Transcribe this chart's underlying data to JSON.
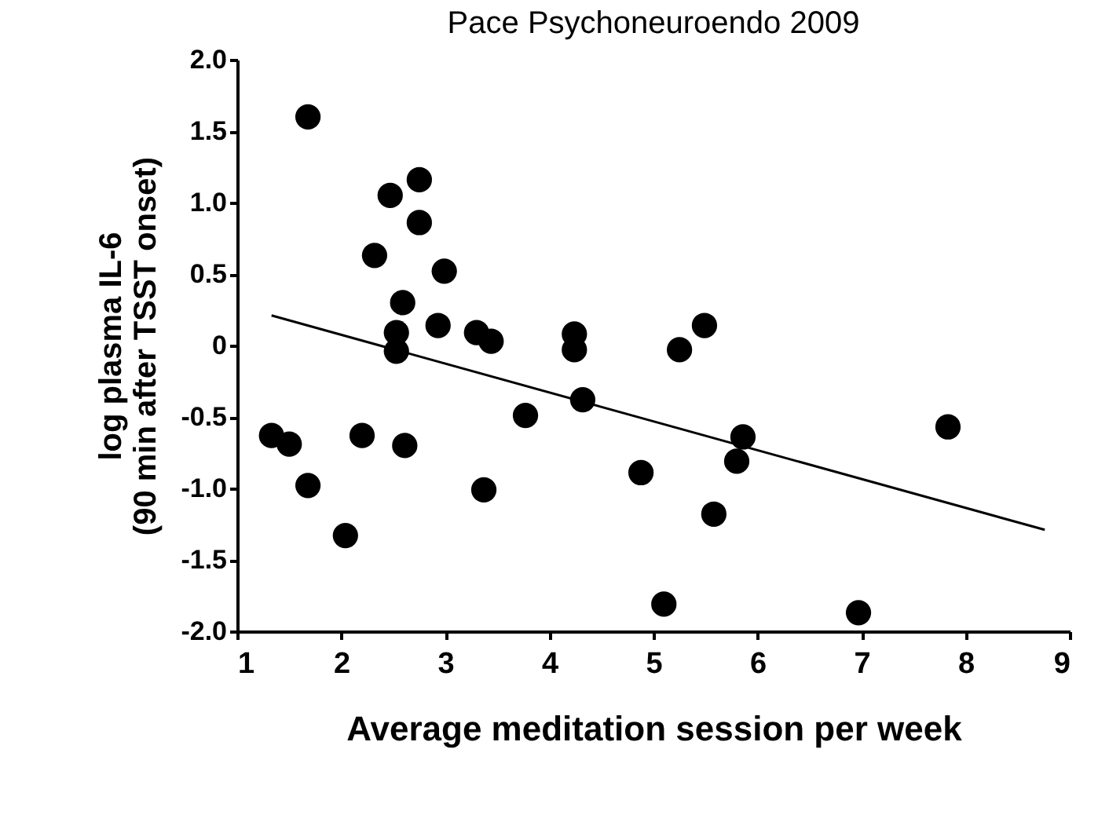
{
  "chart_data": {
    "type": "scatter",
    "title": "Pace Psychoneuroendo 2009",
    "xlabel": "Average meditation session per week",
    "ylabel": "log plasma IL-6\n(90 min after TSST onset)",
    "xlim": [
      1,
      9
    ],
    "xticks": [
      1,
      2,
      3,
      4,
      5,
      6,
      7,
      8,
      9
    ],
    "ylim": [
      -2,
      2
    ],
    "yticks": [
      {
        "value": -2,
        "label": "-2.0"
      },
      -1.5,
      {
        "value": -1,
        "label": "-1.0"
      },
      -0.5,
      0,
      0.5,
      {
        "value": 1,
        "label": "1.0"
      },
      1.5,
      {
        "value": 2,
        "label": "2.0"
      }
    ],
    "grid": false,
    "series": [
      {
        "marker": "circle",
        "color": "#000000",
        "x": [
          1.33,
          1.5,
          1.68,
          1.68,
          2.04,
          2.2,
          2.32,
          2.47,
          2.53,
          2.53,
          2.61,
          2.59,
          2.75,
          2.75,
          2.99,
          2.93,
          3.3,
          3.44,
          3.37,
          3.77,
          4.24,
          4.24,
          4.32,
          4.88,
          5.1,
          5.25,
          5.49,
          5.58,
          5.86,
          5.8,
          6.97,
          7.83
        ],
        "values": [
          -0.63,
          -0.69,
          1.6,
          -0.98,
          -1.33,
          -0.63,
          0.63,
          1.05,
          0.09,
          -0.04,
          -0.7,
          0.3,
          1.16,
          0.86,
          0.52,
          0.14,
          0.09,
          0.03,
          -1.01,
          -0.49,
          0.08,
          -0.03,
          -0.38,
          -0.89,
          -1.81,
          -0.03,
          0.14,
          -1.18,
          -0.64,
          -0.81,
          -1.87,
          -0.57
        ]
      },
      {
        "type": "line",
        "color": "#000000",
        "line_style": "solid",
        "x": [
          1.33,
          8.76
        ],
        "values": [
          0.21,
          -1.29
        ]
      }
    ]
  }
}
